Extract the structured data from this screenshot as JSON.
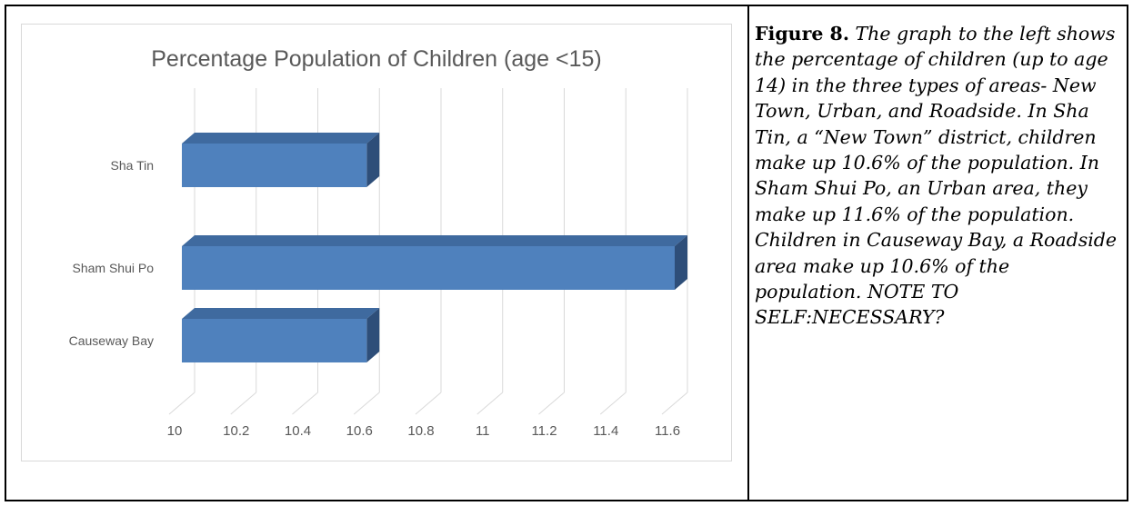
{
  "chart_data": {
    "type": "bar",
    "orientation": "horizontal",
    "style": "3d",
    "title": "Percentage Population of Children (age <15)",
    "categories": [
      "Sha Tin",
      "Sham Shui Po",
      "Causeway Bay"
    ],
    "values": [
      10.6,
      11.6,
      10.6
    ],
    "xlim": [
      10,
      11.6
    ],
    "x_ticks": [
      "10",
      "10.2",
      "10.4",
      "10.6",
      "10.8",
      "11",
      "11.2",
      "11.4",
      "11.6"
    ],
    "grid": true,
    "legend": "none",
    "colors": {
      "bar_front": "#4f81bd",
      "bar_top": "#3f6a9f",
      "bar_side": "#2e4e79",
      "grid": "#d9d9d9",
      "text": "#595959"
    }
  },
  "caption": {
    "label": "Figure 8.",
    "text": " The graph to the left shows the percentage of children (up to age 14) in the three types of areas- New Town, Urban, and Roadside. In Sha Tin, a “New Town” district, children make up 10.6% of the population. In Sham Shui Po, an Urban area, they make up 11.6% of the population. Children in Causeway Bay, a Roadside area make up 10.6% of the population. NOTE TO SELF:NECESSARY?"
  }
}
